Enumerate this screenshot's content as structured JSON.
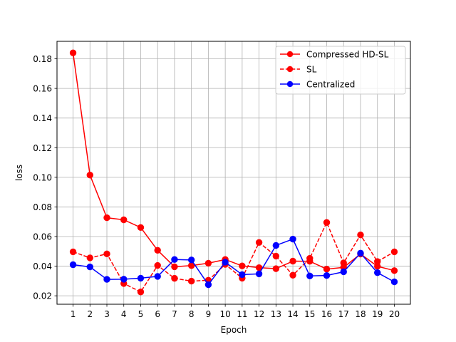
{
  "chart_data": {
    "type": "line",
    "title": "",
    "xlabel": "Epoch",
    "ylabel": "loss",
    "x": [
      1,
      2,
      3,
      4,
      5,
      6,
      7,
      8,
      9,
      10,
      11,
      12,
      13,
      14,
      15,
      16,
      17,
      18,
      19,
      20
    ],
    "xlim": [
      0.05,
      20.95
    ],
    "ylim": [
      0.0143,
      0.1918
    ],
    "yticks": [
      0.02,
      0.04,
      0.06,
      0.08,
      0.1,
      0.12,
      0.14,
      0.16,
      0.18
    ],
    "ytick_labels": [
      "0.02",
      "0.04",
      "0.06",
      "0.08",
      "0.10",
      "0.12",
      "0.14",
      "0.16",
      "0.18"
    ],
    "grid": true,
    "legend_position": "top-right",
    "series": [
      {
        "name": "Compressed HD-SL",
        "color": "#ff0000",
        "linestyle": "solid",
        "marker": "circle",
        "values": [
          0.184,
          0.1015,
          0.0727,
          0.0713,
          0.0661,
          0.0507,
          0.0396,
          0.0404,
          0.042,
          0.0445,
          0.0402,
          0.039,
          0.0383,
          0.0434,
          0.0433,
          0.038,
          0.0392,
          0.0482,
          0.0399,
          0.037
        ]
      },
      {
        "name": "SL",
        "color": "#ff0000",
        "linestyle": "dashed",
        "marker": "circle",
        "values": [
          0.0497,
          0.0456,
          0.0483,
          0.0283,
          0.0226,
          0.0405,
          0.0318,
          0.0299,
          0.0305,
          0.0412,
          0.0319,
          0.056,
          0.0468,
          0.0339,
          0.0453,
          0.0695,
          0.0422,
          0.0611,
          0.0431,
          0.0497
        ]
      },
      {
        "name": "Centralized",
        "color": "#0000ff",
        "linestyle": "solid",
        "marker": "circle",
        "values": [
          0.041,
          0.0395,
          0.0311,
          0.0312,
          0.0319,
          0.0331,
          0.0445,
          0.0442,
          0.0275,
          0.0427,
          0.0343,
          0.0348,
          0.054,
          0.0583,
          0.0334,
          0.0337,
          0.0362,
          0.0488,
          0.0356,
          0.0294
        ]
      }
    ]
  }
}
